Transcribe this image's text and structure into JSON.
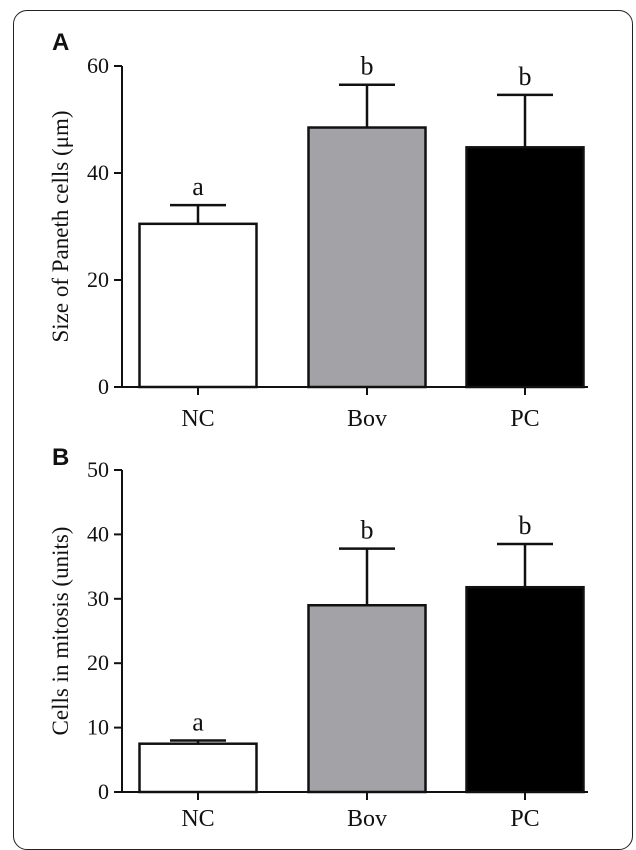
{
  "chart_data": [
    {
      "type": "bar",
      "panel_label": "A",
      "title": "",
      "xlabel": "",
      "ylabel": "Size of Paneth cells (μm)",
      "categories": [
        "NC",
        "Bov",
        "PC"
      ],
      "values": [
        30.5,
        48.5,
        44.8
      ],
      "errors": [
        3.5,
        8.0,
        9.8
      ],
      "significance": [
        "a",
        "b",
        "b"
      ],
      "colors": [
        "#ffffff",
        "#a3a3a7",
        "#000000"
      ],
      "ylim": [
        0,
        60
      ],
      "yticks": [
        "0",
        "20",
        "40",
        "60"
      ],
      "grid": false
    },
    {
      "type": "bar",
      "panel_label": "B",
      "title": "",
      "xlabel": "",
      "ylabel": "Cells in mitosis (units)",
      "categories": [
        "NC",
        "Bov",
        "PC"
      ],
      "values": [
        7.5,
        29.0,
        31.8
      ],
      "errors": [
        0.5,
        8.8,
        6.7
      ],
      "significance": [
        "a",
        "b",
        "b"
      ],
      "colors": [
        "#ffffff",
        "#a3a3a7",
        "#000000"
      ],
      "ylim": [
        0,
        50
      ],
      "yticks": [
        "0",
        "10",
        "20",
        "30",
        "40",
        "50"
      ],
      "grid": false
    }
  ]
}
